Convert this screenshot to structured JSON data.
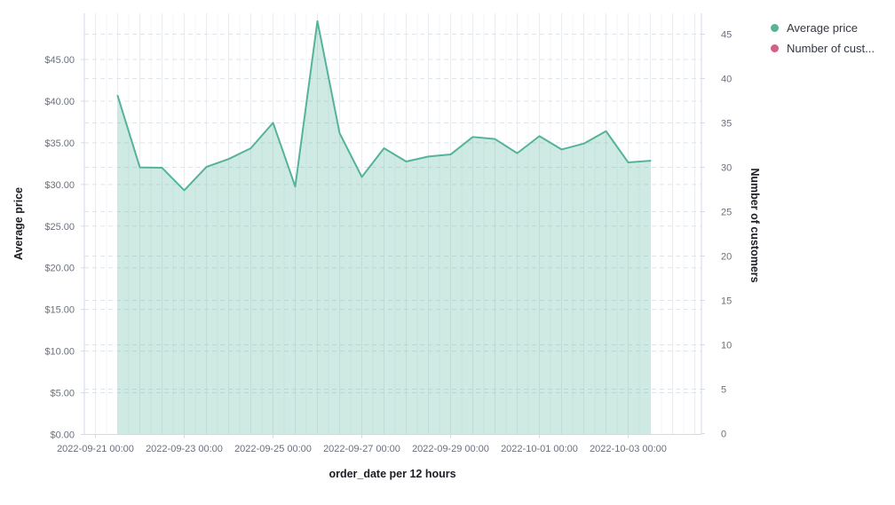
{
  "chart_data": {
    "type": "area",
    "x_axis": {
      "title": "order_date per 12 hours",
      "tick_labels": [
        "2022-09-21 00:00",
        "2022-09-23 00:00",
        "2022-09-25 00:00",
        "2022-09-27 00:00",
        "2022-09-29 00:00",
        "2022-10-01 00:00",
        "2022-10-03 00:00"
      ]
    },
    "y_axis_left": {
      "title": "Average price",
      "tick_labels": [
        "$0.00",
        "$5.00",
        "$10.00",
        "$15.00",
        "$20.00",
        "$25.00",
        "$30.00",
        "$35.00",
        "$40.00",
        "$45.00"
      ],
      "tick_values": [
        0,
        5,
        10,
        15,
        20,
        25,
        30,
        35,
        40,
        45
      ],
      "range": [
        0,
        50.5
      ],
      "grid": "dashed"
    },
    "y_axis_right": {
      "title": "Number of customers",
      "tick_labels": [
        "0",
        "5",
        "10",
        "15",
        "20",
        "25",
        "30",
        "35",
        "40",
        "45"
      ],
      "tick_values": [
        0,
        5,
        10,
        15,
        20,
        25,
        30,
        35,
        40,
        45
      ],
      "range": [
        0,
        47.3
      ],
      "grid": "dashed"
    },
    "series": [
      {
        "name": "Average price",
        "type": "area",
        "axis": "left",
        "color": "#54B399",
        "x": [
          "2022-09-21 12:00",
          "2022-09-22 00:00",
          "2022-09-22 12:00",
          "2022-09-23 00:00",
          "2022-09-23 12:00",
          "2022-09-24 00:00",
          "2022-09-24 12:00",
          "2022-09-25 00:00",
          "2022-09-25 12:00",
          "2022-09-26 00:00",
          "2022-09-26 12:00",
          "2022-09-27 00:00",
          "2022-09-27 12:00",
          "2022-09-28 00:00",
          "2022-09-28 12:00",
          "2022-09-29 00:00",
          "2022-09-29 12:00",
          "2022-09-30 00:00",
          "2022-09-30 12:00",
          "2022-10-01 00:00",
          "2022-10-01 12:00",
          "2022-10-02 00:00",
          "2022-10-02 12:00",
          "2022-10-03 00:00",
          "2022-10-03 12:00"
        ],
        "values": [
          40.65,
          32.05,
          32.0,
          29.3,
          32.1,
          33.05,
          34.35,
          37.4,
          29.75,
          49.6,
          36.15,
          30.9,
          34.35,
          32.75,
          33.35,
          33.6,
          35.7,
          35.45,
          33.75,
          35.8,
          34.2,
          34.9,
          36.4,
          32.65,
          32.85
        ]
      },
      {
        "name": "Number of customers",
        "type": "line",
        "axis": "right",
        "color": "#D36086",
        "x": [],
        "values": []
      }
    ],
    "legend": {
      "position": "top-right",
      "items": [
        {
          "label": "Average price",
          "color": "#54B399"
        },
        {
          "label": "Number of cust...",
          "color": "#D36086"
        }
      ]
    }
  },
  "colors": {
    "background": "#ffffff",
    "axis_line": "#d3dae6",
    "gridline_major": "#e9ecf1",
    "gridline_minor": "#f3f5f8",
    "gridline_dash": "#dfe3ea",
    "tick_text": "#69707D",
    "axis_title_text": "#1D1E24",
    "legend_text": "#343741"
  }
}
